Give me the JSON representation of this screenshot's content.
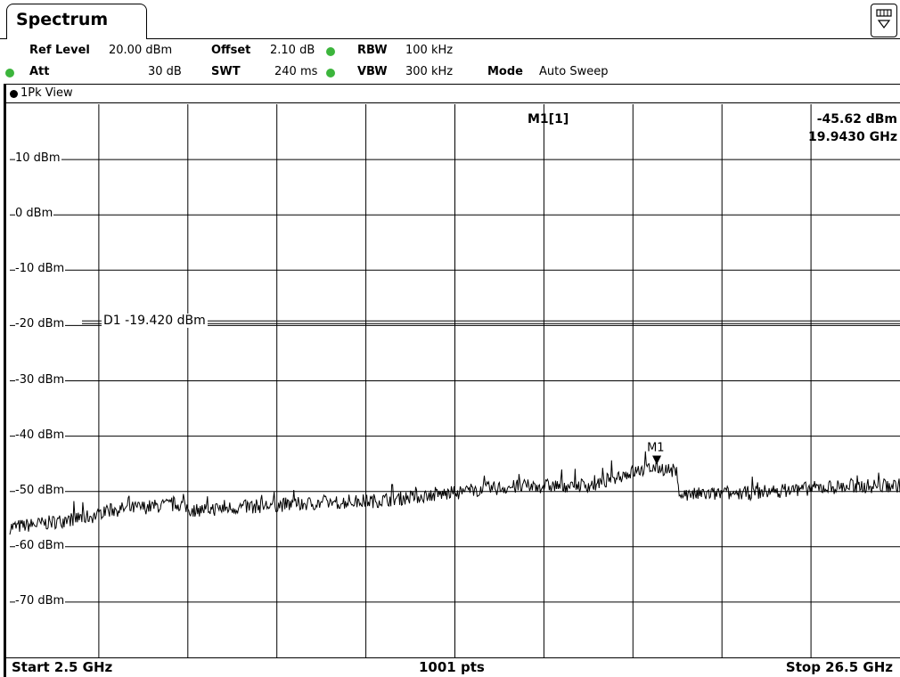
{
  "tab": {
    "label": "Spectrum"
  },
  "icons": {
    "menu": "display-config-icon"
  },
  "settings": {
    "ref_level_label": "Ref Level",
    "ref_level_value": "20.00 dBm",
    "offset_label": "Offset",
    "offset_value": "2.10 dB",
    "rbw_label": "RBW",
    "rbw_value": "100 kHz",
    "att_label": "Att",
    "att_value": "30 dB",
    "swt_label": "SWT",
    "swt_value": "240 ms",
    "vbw_label": "VBW",
    "vbw_value": "300 kHz",
    "mode_label": "Mode",
    "mode_value": "Auto Sweep"
  },
  "view": {
    "label": "1Pk View"
  },
  "marker": {
    "name": "M1[1]",
    "level": "-45.62 dBm",
    "freq": "19.9430 GHz",
    "label": "M1"
  },
  "display_line": {
    "label": "D1 -19.420 dBm",
    "value": -19.42
  },
  "footer": {
    "start": "Start 2.5 GHz",
    "points": "1001 pts",
    "stop": "Stop 26.5 GHz"
  },
  "colors": {
    "status_dot": "#3cb53c",
    "trace": "#000000",
    "grid": "#000000"
  },
  "chart_data": {
    "type": "line",
    "x_unit": "GHz",
    "y_unit": "dBm",
    "xlim": [
      2.5,
      26.5
    ],
    "ylim": [
      -80,
      20
    ],
    "grid": true,
    "y_tick_labels": [
      "10 dBm",
      "0 dBm",
      "-10 dBm",
      "-20 dBm",
      "-30 dBm",
      "-40 dBm",
      "-50 dBm",
      "-60 dBm",
      "-70 dBm"
    ],
    "y_ticks": [
      10,
      0,
      -10,
      -20,
      -30,
      -40,
      -50,
      -60,
      -70
    ],
    "points": 1001,
    "series": [
      {
        "x": [
          2.5,
          3.4,
          4.9,
          5.0,
          7.1,
          7.4,
          9.9,
          12.3,
          14.6,
          14.9,
          16.0,
          17.0,
          18.4,
          18.7,
          19.3,
          19.943,
          20.4,
          20.6,
          22.2,
          24.6,
          26.5
        ],
        "y": [
          -56.5,
          -55.8,
          -54.3,
          -53.5,
          -52.3,
          -53.4,
          -52.4,
          -51.7,
          -50.2,
          -49.8,
          -49.2,
          -49.0,
          -48.8,
          -47.6,
          -46.5,
          -45.62,
          -46.3,
          -50.6,
          -50.4,
          -49.2,
          -48.9
        ]
      }
    ]
  }
}
